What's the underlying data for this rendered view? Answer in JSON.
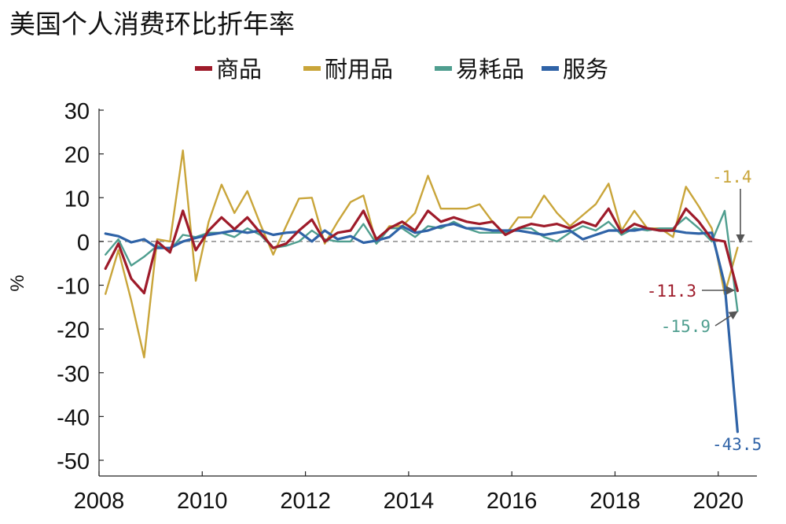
{
  "chart_data": {
    "type": "line",
    "title": "美国个人消费环比折年率",
    "ylabel": "%",
    "xlim": [
      2008,
      2020.75
    ],
    "ylim": [
      -50,
      30
    ],
    "x_ticks": [
      2008,
      2010,
      2012,
      2014,
      2016,
      2018,
      2020
    ],
    "x_tick_labels": [
      "2008",
      "2010",
      "2012",
      "2014",
      "2016",
      "2018",
      "2020"
    ],
    "y_ticks": [
      30,
      20,
      10,
      0,
      -10,
      -20,
      -30,
      -40,
      -50
    ],
    "y_tick_labels": [
      "30",
      "20",
      "10",
      "0",
      "-10",
      "-20",
      "-30",
      "-40",
      "-50"
    ],
    "grid": false,
    "zero_line": true,
    "legend_position": "top",
    "x": [
      2008.125,
      2008.375,
      2008.625,
      2008.875,
      2009.125,
      2009.375,
      2009.625,
      2009.875,
      2010.125,
      2010.375,
      2010.625,
      2010.875,
      2011.125,
      2011.375,
      2011.625,
      2011.875,
      2012.125,
      2012.375,
      2012.625,
      2012.875,
      2013.125,
      2013.375,
      2013.625,
      2013.875,
      2014.125,
      2014.375,
      2014.625,
      2014.875,
      2015.125,
      2015.375,
      2015.625,
      2015.875,
      2016.125,
      2016.375,
      2016.625,
      2016.875,
      2017.125,
      2017.375,
      2017.625,
      2017.875,
      2018.125,
      2018.375,
      2018.625,
      2018.875,
      2019.125,
      2019.375,
      2019.625,
      2019.875,
      2020.125,
      2020.375
    ],
    "series": [
      {
        "name": "商品",
        "color": "#9e1b2a",
        "width": 3.2,
        "values": [
          -6.2,
          -0.5,
          -8.5,
          -11.8,
          0.0,
          -2.5,
          7.0,
          -2.0,
          2.5,
          5.5,
          2.8,
          5.5,
          2.0,
          -1.5,
          -0.5,
          2.5,
          5.0,
          0.0,
          2.0,
          2.5,
          7.0,
          0.5,
          3.0,
          4.5,
          2.5,
          7.0,
          4.5,
          5.5,
          4.5,
          4.0,
          4.5,
          1.5,
          3.0,
          4.0,
          3.5,
          4.0,
          3.0,
          4.5,
          3.5,
          7.5,
          2.0,
          4.0,
          3.0,
          2.5,
          2.5,
          7.5,
          4.5,
          0.5,
          0.0,
          -11.3
        ]
      },
      {
        "name": "耐用品",
        "color": "#c9a53a",
        "width": 2.4,
        "values": [
          -12.0,
          -2.0,
          -13.5,
          -26.5,
          0.5,
          0.0,
          20.8,
          -9.0,
          4.5,
          13.0,
          6.5,
          11.5,
          4.0,
          -3.0,
          3.5,
          9.8,
          10.0,
          -0.5,
          4.5,
          9.0,
          10.5,
          -0.5,
          3.5,
          3.5,
          6.5,
          15.0,
          7.5,
          7.5,
          7.5,
          8.5,
          4.5,
          1.5,
          5.5,
          5.5,
          10.5,
          6.5,
          3.5,
          6.0,
          8.5,
          13.2,
          2.5,
          7.0,
          3.0,
          3.0,
          1.0,
          12.5,
          8.0,
          3.0,
          -12.0,
          -1.4
        ]
      },
      {
        "name": "易耗品",
        "color": "#4f9e8f",
        "width": 2.4,
        "values": [
          -3.0,
          0.5,
          -5.5,
          -3.5,
          -1.0,
          -2.0,
          1.5,
          1.0,
          2.0,
          2.0,
          1.0,
          3.0,
          1.5,
          -1.5,
          -1.0,
          0.0,
          2.5,
          0.5,
          0.0,
          0.0,
          4.0,
          -0.5,
          3.0,
          3.0,
          1.0,
          3.5,
          3.0,
          4.5,
          3.0,
          2.0,
          2.0,
          2.0,
          3.0,
          3.0,
          1.0,
          0.0,
          2.0,
          3.5,
          2.5,
          4.5,
          1.5,
          3.0,
          2.5,
          3.0,
          3.0,
          5.5,
          3.0,
          0.0,
          7.0,
          -15.9
        ]
      },
      {
        "name": "服务",
        "color": "#2f63a7",
        "width": 3.2,
        "values": [
          1.8,
          1.2,
          -0.2,
          0.5,
          -1.5,
          -1.5,
          0.0,
          0.8,
          1.5,
          2.0,
          2.5,
          2.0,
          2.5,
          1.5,
          2.0,
          2.2,
          0.0,
          2.5,
          0.5,
          1.2,
          -0.3,
          0.2,
          1.0,
          3.5,
          2.0,
          2.5,
          3.5,
          4.0,
          3.0,
          3.0,
          2.5,
          2.5,
          2.5,
          2.0,
          1.5,
          2.0,
          2.5,
          0.5,
          1.5,
          2.5,
          2.5,
          2.5,
          3.0,
          2.5,
          2.5,
          2.0,
          1.8,
          2.0,
          -9.8,
          -43.5
        ]
      }
    ],
    "annotations": [
      {
        "text": "-1.4",
        "series": "耐用品",
        "color": "#c9a53a"
      },
      {
        "text": "-11.3",
        "series": "商品",
        "color": "#9e1b2a"
      },
      {
        "text": "-15.9",
        "series": "易耗品",
        "color": "#4f9e8f"
      },
      {
        "text": "-43.5",
        "series": "服务",
        "color": "#2f63a7"
      }
    ]
  }
}
